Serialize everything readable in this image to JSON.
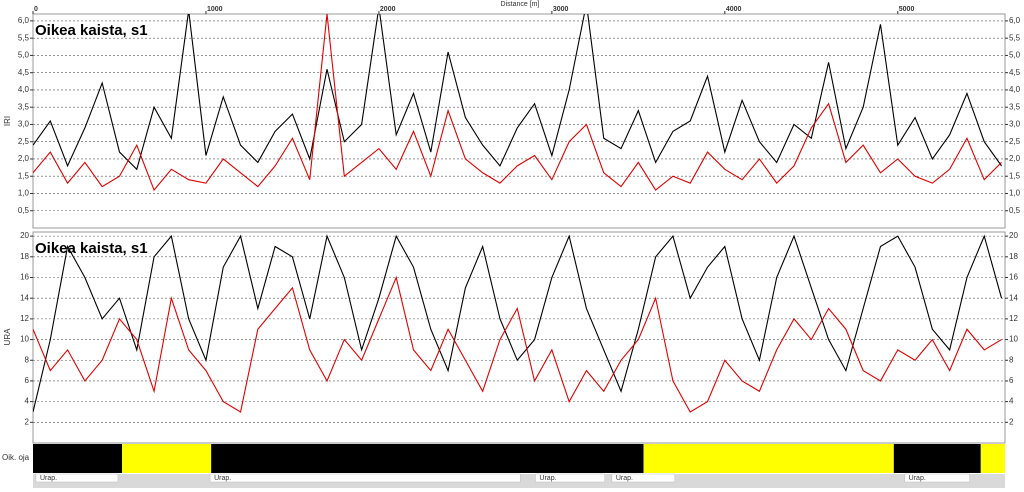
{
  "chart_data": [
    {
      "type": "line",
      "title": "Oikea kaista, s1",
      "ylabel": "IRI",
      "xlabel": "Distance [m]",
      "xlim": [
        0,
        5620
      ],
      "xticks": [
        0,
        1000,
        2000,
        3000,
        4000,
        5000
      ],
      "ylim": [
        0,
        6.2
      ],
      "yticks": [
        {
          "value": 0.5,
          "label": "0,5"
        },
        {
          "value": 1.0,
          "label": "1,0"
        },
        {
          "value": 1.5,
          "label": "1,5"
        },
        {
          "value": 2.0,
          "label": "2,0"
        },
        {
          "value": 2.5,
          "label": "2,5"
        },
        {
          "value": 3.0,
          "label": "3,0"
        },
        {
          "value": 3.5,
          "label": "3,5"
        },
        {
          "value": 4.0,
          "label": "4,0"
        },
        {
          "value": 4.5,
          "label": "4,5"
        },
        {
          "value": 5.0,
          "label": "5,0"
        },
        {
          "value": 5.5,
          "label": "5,5"
        },
        {
          "value": 6.0,
          "label": "6,0"
        }
      ],
      "grid": true,
      "x": [
        0,
        100,
        200,
        300,
        400,
        500,
        600,
        700,
        800,
        900,
        1000,
        1100,
        1200,
        1300,
        1400,
        1500,
        1600,
        1700,
        1800,
        1900,
        2000,
        2100,
        2200,
        2300,
        2400,
        2500,
        2600,
        2700,
        2800,
        2900,
        3000,
        3100,
        3200,
        3300,
        3400,
        3500,
        3600,
        3700,
        3800,
        3900,
        4000,
        4100,
        4200,
        4300,
        4400,
        4500,
        4600,
        4700,
        4800,
        4900,
        5000,
        5100,
        5200,
        5300,
        5400,
        5500,
        5600
      ],
      "series": [
        {
          "color": "#000000",
          "values": [
            2.4,
            3.1,
            1.8,
            2.9,
            4.2,
            2.2,
            1.7,
            3.5,
            2.6,
            6.3,
            2.1,
            3.8,
            2.4,
            1.9,
            2.8,
            3.3,
            2.0,
            4.6,
            2.5,
            3.0,
            6.4,
            2.7,
            3.9,
            2.2,
            5.1,
            3.2,
            2.4,
            1.8,
            2.9,
            3.6,
            2.1,
            4.0,
            6.5,
            2.6,
            2.3,
            3.4,
            1.9,
            2.8,
            3.1,
            4.4,
            2.2,
            3.7,
            2.5,
            1.9,
            3.0,
            2.6,
            4.8,
            2.3,
            3.5,
            5.9,
            2.4,
            3.2,
            2.0,
            2.7,
            3.9,
            2.5,
            1.8
          ]
        },
        {
          "color": "#e00000",
          "values": [
            1.6,
            2.2,
            1.3,
            1.9,
            1.2,
            1.5,
            2.4,
            1.1,
            1.7,
            1.4,
            1.3,
            2.0,
            1.6,
            1.2,
            1.8,
            2.6,
            1.4,
            6.2,
            1.5,
            1.9,
            2.3,
            1.7,
            2.8,
            1.5,
            3.4,
            2.0,
            1.6,
            1.3,
            1.8,
            2.1,
            1.4,
            2.5,
            3.0,
            1.6,
            1.2,
            1.9,
            1.1,
            1.5,
            1.3,
            2.2,
            1.7,
            1.4,
            2.0,
            1.3,
            1.8,
            2.9,
            3.6,
            1.9,
            2.4,
            1.6,
            2.0,
            1.5,
            1.3,
            1.7,
            2.6,
            1.4,
            1.9
          ]
        }
      ]
    },
    {
      "type": "line",
      "title": "Oikea kaista, s1",
      "ylabel": "URA",
      "xlim": [
        0,
        5620
      ],
      "ylim": [
        0,
        20.4
      ],
      "yticks": [
        2,
        4,
        6,
        8,
        10,
        12,
        14,
        16,
        18,
        20
      ],
      "grid": true,
      "x": [
        0,
        100,
        200,
        300,
        400,
        500,
        600,
        700,
        800,
        900,
        1000,
        1100,
        1200,
        1300,
        1400,
        1500,
        1600,
        1700,
        1800,
        1900,
        2000,
        2100,
        2200,
        2300,
        2400,
        2500,
        2600,
        2700,
        2800,
        2900,
        3000,
        3100,
        3200,
        3300,
        3400,
        3500,
        3600,
        3700,
        3800,
        3900,
        4000,
        4100,
        4200,
        4300,
        4400,
        4500,
        4600,
        4700,
        4800,
        4900,
        5000,
        5100,
        5200,
        5300,
        5400,
        5500,
        5600
      ],
      "series": [
        {
          "color": "#000000",
          "values": [
            3,
            10,
            19,
            16,
            12,
            14,
            9,
            18,
            20,
            12,
            8,
            17,
            20,
            13,
            19,
            18,
            12,
            20,
            16,
            9,
            14,
            20,
            17,
            11,
            7,
            15,
            19,
            12,
            8,
            10,
            16,
            20,
            13,
            9,
            5,
            11,
            18,
            20,
            14,
            17,
            19,
            12,
            8,
            16,
            20,
            15,
            10,
            7,
            13,
            19,
            20,
            17,
            11,
            9,
            16,
            20,
            14
          ]
        },
        {
          "color": "#e00000",
          "values": [
            11,
            7,
            9,
            6,
            8,
            12,
            10,
            5,
            14,
            9,
            7,
            4,
            3,
            11,
            13,
            15,
            9,
            6,
            10,
            8,
            12,
            16,
            9,
            7,
            11,
            8,
            5,
            10,
            13,
            6,
            9,
            4,
            7,
            5,
            8,
            10,
            14,
            6,
            3,
            4,
            8,
            6,
            5,
            9,
            12,
            10,
            13,
            11,
            7,
            6,
            9,
            8,
            10,
            7,
            11,
            9,
            10
          ]
        }
      ]
    }
  ],
  "strips": [
    {
      "label": "Oik. oja",
      "segments": [
        {
          "start": 0,
          "end": 515,
          "color": "#000000"
        },
        {
          "start": 515,
          "end": 1030,
          "color": "#ffff00"
        },
        {
          "start": 1030,
          "end": 3530,
          "color": "#000000"
        },
        {
          "start": 3530,
          "end": 4977,
          "color": "#ffff00"
        },
        {
          "start": 4977,
          "end": 5480,
          "color": "#000000"
        },
        {
          "start": 5480,
          "end": 5620,
          "color": "#ffff00"
        }
      ]
    },
    {
      "segments": [
        {
          "start": 17,
          "end": 491,
          "label": "Urap."
        },
        {
          "start": 1024,
          "end": 2818,
          "label": "Urap."
        },
        {
          "start": 2905,
          "end": 3306,
          "label": "Urap."
        },
        {
          "start": 3347,
          "end": 3711,
          "label": "Urap."
        },
        {
          "start": 5040,
          "end": 5416,
          "label": "Urap."
        }
      ]
    }
  ]
}
